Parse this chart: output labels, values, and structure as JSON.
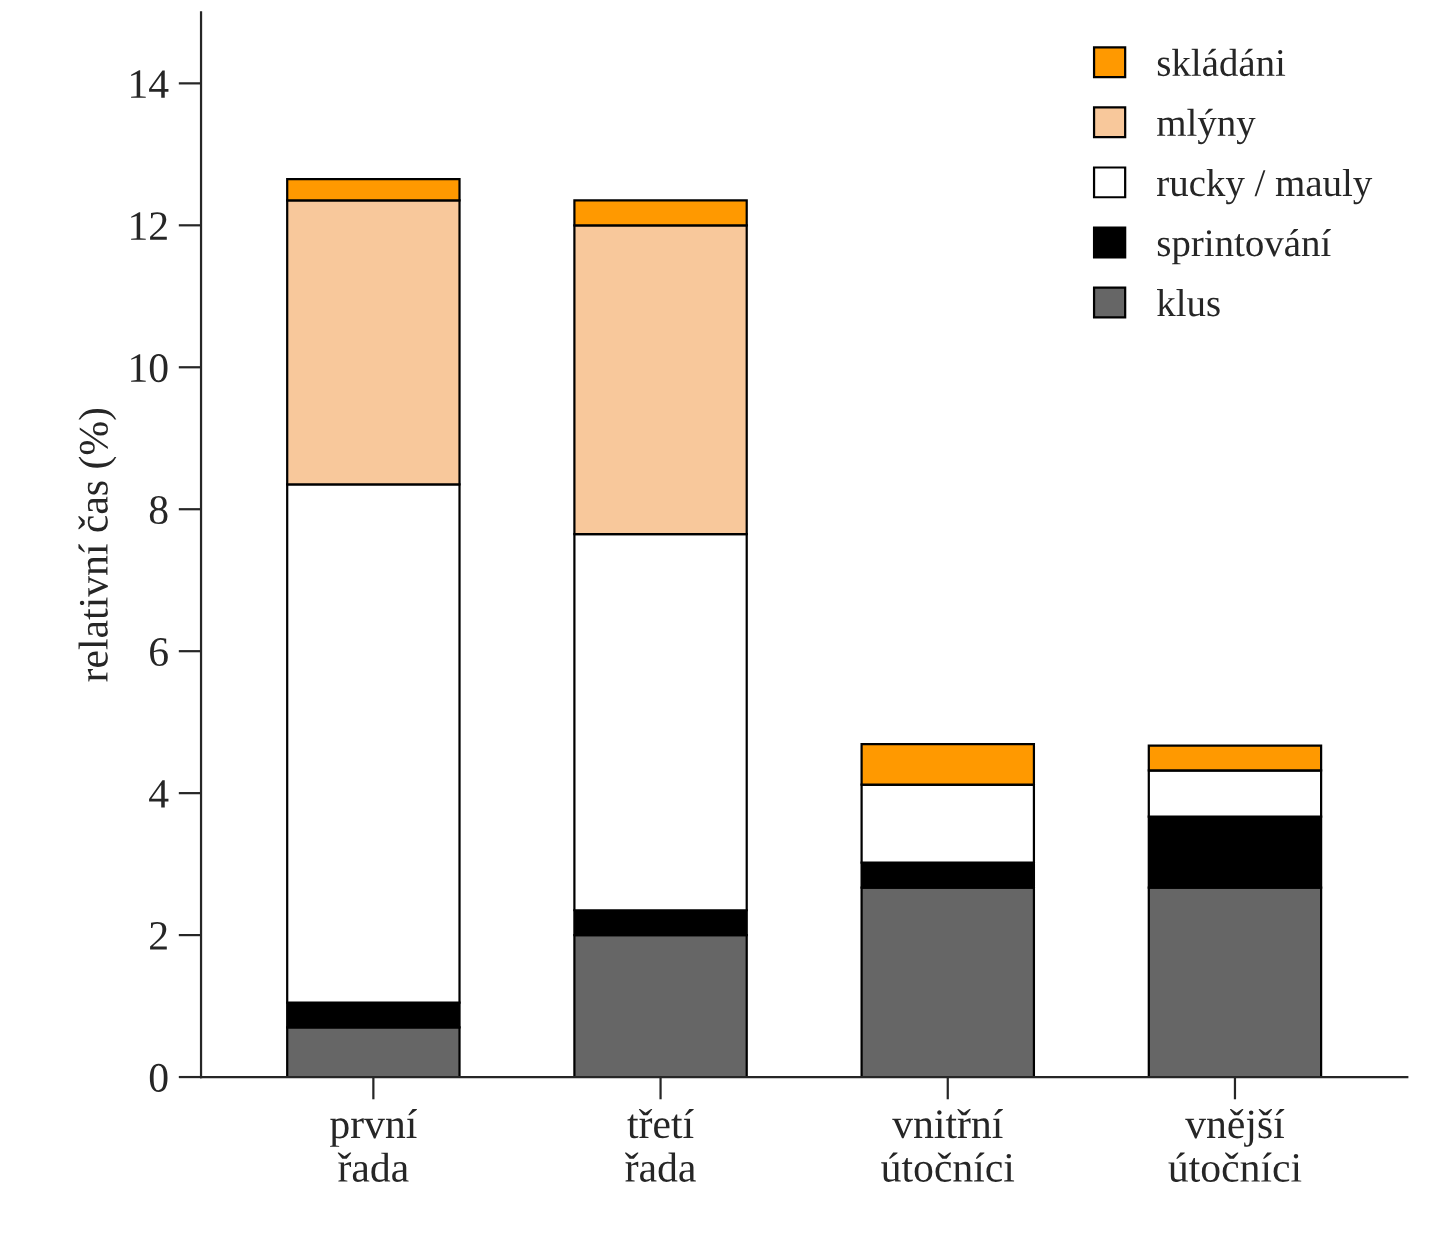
{
  "chart_data": {
    "type": "bar",
    "stacked": true,
    "ylabel": "relativní čas (%)",
    "categories": [
      "první\nřada",
      "třetí\nřada",
      "vnitřní\nútočníci",
      "vnější\nútočníci"
    ],
    "series": [
      {
        "name": "klus",
        "color": "#666666",
        "values": [
          0.7,
          2.0,
          2.67,
          2.67
        ]
      },
      {
        "name": "sprintování",
        "color": "#000000",
        "values": [
          0.35,
          0.35,
          0.35,
          1.0
        ]
      },
      {
        "name": "rucky / mauly",
        "color": "#ffffff",
        "values": [
          7.3,
          5.3,
          1.1,
          0.65
        ]
      },
      {
        "name": "mlýny",
        "color": "#f8c89b",
        "values": [
          4.0,
          4.35,
          0,
          0
        ]
      },
      {
        "name": "skládáni",
        "color": "#ff9900",
        "values": [
          0.3,
          0.35,
          0.57,
          0.35
        ]
      }
    ],
    "ylim": [
      0,
      15
    ],
    "yticks": [
      0,
      2,
      4,
      6,
      8,
      10,
      12,
      14
    ],
    "grid": false,
    "legend": "top right"
  }
}
